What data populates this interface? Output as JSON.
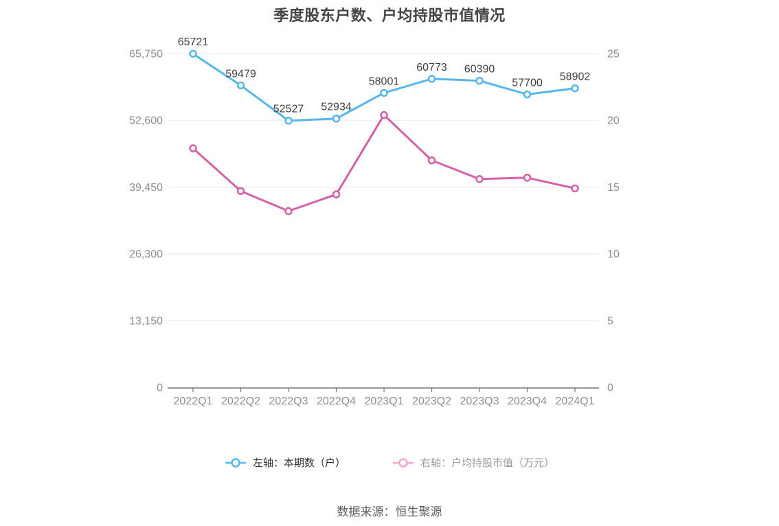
{
  "title": "季度股东户数、户均持股市值情况",
  "footer": {
    "source": "数据来源：恒生聚源"
  },
  "chart_data": {
    "type": "line",
    "title": "季度股东户数、户均持股市值情况",
    "categories": [
      "2022Q1",
      "2022Q2",
      "2022Q3",
      "2022Q4",
      "2023Q1",
      "2023Q2",
      "2023Q3",
      "2023Q4",
      "2024Q1"
    ],
    "series": [
      {
        "name": "左轴：本期数（户）",
        "axis": "left",
        "color": "#54b8ef",
        "legend_marker_color": "#54b8ef",
        "legend_text_color": "#333333",
        "show_labels": true,
        "values": [
          65721,
          59479,
          52527,
          52934,
          58001,
          60773,
          60390,
          57700,
          58902
        ]
      },
      {
        "name": "右轴：户均持股市值（万元）",
        "axis": "right",
        "color": "#d75fa6",
        "legend_marker_color": "#f0a6d0",
        "legend_text_color": "#9a9a9a",
        "show_labels": false,
        "values": [
          17.9,
          14.7,
          13.2,
          14.45,
          20.4,
          17.0,
          15.6,
          15.7,
          14.9
        ]
      }
    ],
    "left_axis": {
      "label": "本期数（户）",
      "min": 0,
      "max": 65750,
      "ticks": [
        "0",
        "13,150",
        "26,300",
        "39,450",
        "52,600",
        "65,750"
      ]
    },
    "right_axis": {
      "label": "户均持股市值（万元）",
      "min": 0,
      "max": 25,
      "ticks": [
        "0",
        "5",
        "10",
        "15",
        "20",
        "25"
      ]
    },
    "grid": true,
    "legend_position": "bottom",
    "colors": {
      "grid_line": "#e9ebf2",
      "axis_line": "#76767e",
      "axis_label": "#8e8e8e",
      "data_label": "#3f3f3f",
      "title": "#454545",
      "point_fill": "#ffffff"
    }
  }
}
